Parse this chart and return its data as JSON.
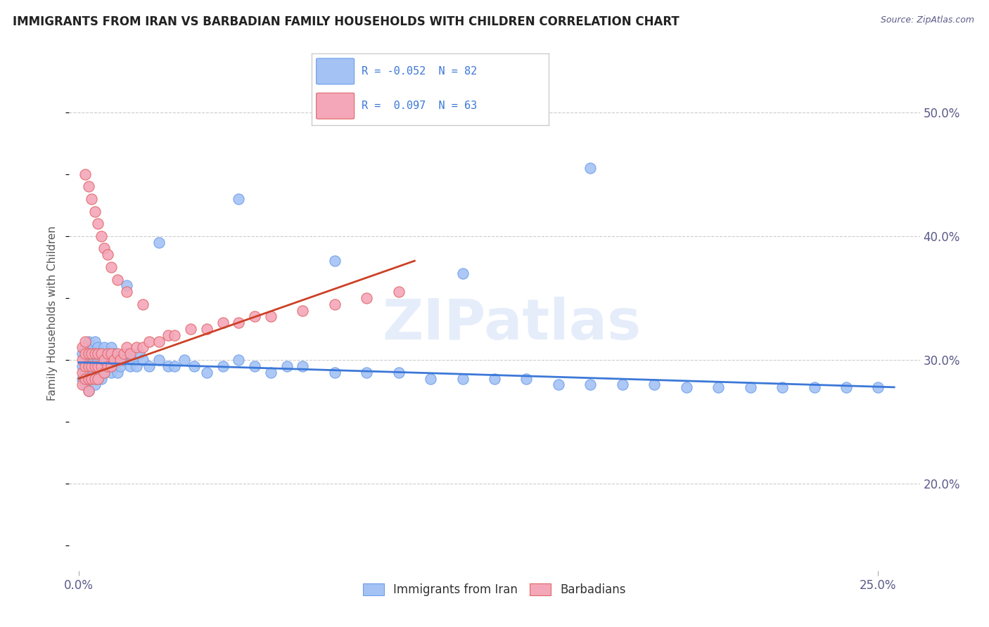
{
  "title": "IMMIGRANTS FROM IRAN VS BARBADIAN FAMILY HOUSEHOLDS WITH CHILDREN CORRELATION CHART",
  "source": "Source: ZipAtlas.com",
  "ylabel": "Family Households with Children",
  "yticks": [
    "20.0%",
    "30.0%",
    "40.0%",
    "50.0%"
  ],
  "ytick_values": [
    0.2,
    0.3,
    0.4,
    0.5
  ],
  "ymin": 0.13,
  "ymax": 0.545,
  "xmin": -0.003,
  "xmax": 0.263,
  "xtick_left_label": "0.0%",
  "xtick_right_label": "25.0%",
  "legend_blue_text": "R = -0.052  N = 82",
  "legend_pink_text": "R =  0.097  N = 63",
  "blue_color": "#a4c2f4",
  "pink_color": "#f4a7b9",
  "blue_edge_color": "#6d9eeb",
  "pink_edge_color": "#e06666",
  "blue_line_color": "#3c78d8",
  "pink_line_color": "#cc4125",
  "watermark": "ZIPatlas",
  "blue_trend_x": [
    0.0,
    0.255
  ],
  "blue_trend_y": [
    0.298,
    0.278
  ],
  "pink_trend_x": [
    0.0,
    0.105
  ],
  "pink_trend_y": [
    0.285,
    0.38
  ],
  "blue_scatter_x": [
    0.001,
    0.001,
    0.001,
    0.002,
    0.002,
    0.002,
    0.002,
    0.003,
    0.003,
    0.003,
    0.003,
    0.004,
    0.004,
    0.004,
    0.004,
    0.005,
    0.005,
    0.005,
    0.005,
    0.006,
    0.006,
    0.006,
    0.007,
    0.007,
    0.007,
    0.008,
    0.008,
    0.008,
    0.009,
    0.009,
    0.01,
    0.01,
    0.01,
    0.011,
    0.011,
    0.012,
    0.012,
    0.013,
    0.014,
    0.015,
    0.016,
    0.017,
    0.018,
    0.019,
    0.02,
    0.022,
    0.025,
    0.028,
    0.03,
    0.033,
    0.036,
    0.04,
    0.045,
    0.05,
    0.055,
    0.06,
    0.065,
    0.07,
    0.08,
    0.09,
    0.1,
    0.11,
    0.12,
    0.13,
    0.14,
    0.15,
    0.16,
    0.17,
    0.18,
    0.19,
    0.2,
    0.21,
    0.22,
    0.23,
    0.24,
    0.25,
    0.015,
    0.025,
    0.05,
    0.08,
    0.12,
    0.16
  ],
  "blue_scatter_y": [
    0.295,
    0.305,
    0.285,
    0.3,
    0.29,
    0.31,
    0.28,
    0.295,
    0.305,
    0.315,
    0.275,
    0.29,
    0.3,
    0.31,
    0.285,
    0.295,
    0.305,
    0.28,
    0.315,
    0.29,
    0.3,
    0.31,
    0.285,
    0.295,
    0.305,
    0.29,
    0.3,
    0.31,
    0.295,
    0.305,
    0.29,
    0.3,
    0.31,
    0.295,
    0.305,
    0.29,
    0.3,
    0.295,
    0.3,
    0.305,
    0.295,
    0.3,
    0.295,
    0.305,
    0.3,
    0.295,
    0.3,
    0.295,
    0.295,
    0.3,
    0.295,
    0.29,
    0.295,
    0.3,
    0.295,
    0.29,
    0.295,
    0.295,
    0.29,
    0.29,
    0.29,
    0.285,
    0.285,
    0.285,
    0.285,
    0.28,
    0.28,
    0.28,
    0.28,
    0.278,
    0.278,
    0.278,
    0.278,
    0.278,
    0.278,
    0.278,
    0.36,
    0.395,
    0.43,
    0.38,
    0.37,
    0.455
  ],
  "pink_scatter_x": [
    0.001,
    0.001,
    0.001,
    0.001,
    0.002,
    0.002,
    0.002,
    0.002,
    0.003,
    0.003,
    0.003,
    0.003,
    0.004,
    0.004,
    0.004,
    0.005,
    0.005,
    0.005,
    0.006,
    0.006,
    0.006,
    0.007,
    0.007,
    0.008,
    0.008,
    0.009,
    0.009,
    0.01,
    0.01,
    0.011,
    0.012,
    0.013,
    0.014,
    0.015,
    0.016,
    0.018,
    0.02,
    0.022,
    0.025,
    0.028,
    0.03,
    0.035,
    0.04,
    0.045,
    0.05,
    0.055,
    0.06,
    0.07,
    0.08,
    0.09,
    0.1,
    0.002,
    0.003,
    0.004,
    0.005,
    0.006,
    0.007,
    0.008,
    0.009,
    0.01,
    0.012,
    0.015,
    0.02
  ],
  "pink_scatter_y": [
    0.3,
    0.29,
    0.31,
    0.28,
    0.295,
    0.305,
    0.285,
    0.315,
    0.295,
    0.305,
    0.285,
    0.275,
    0.295,
    0.305,
    0.285,
    0.295,
    0.305,
    0.285,
    0.295,
    0.305,
    0.285,
    0.295,
    0.305,
    0.29,
    0.3,
    0.295,
    0.305,
    0.295,
    0.305,
    0.3,
    0.305,
    0.3,
    0.305,
    0.31,
    0.305,
    0.31,
    0.31,
    0.315,
    0.315,
    0.32,
    0.32,
    0.325,
    0.325,
    0.33,
    0.33,
    0.335,
    0.335,
    0.34,
    0.345,
    0.35,
    0.355,
    0.45,
    0.44,
    0.43,
    0.42,
    0.41,
    0.4,
    0.39,
    0.385,
    0.375,
    0.365,
    0.355,
    0.345
  ]
}
